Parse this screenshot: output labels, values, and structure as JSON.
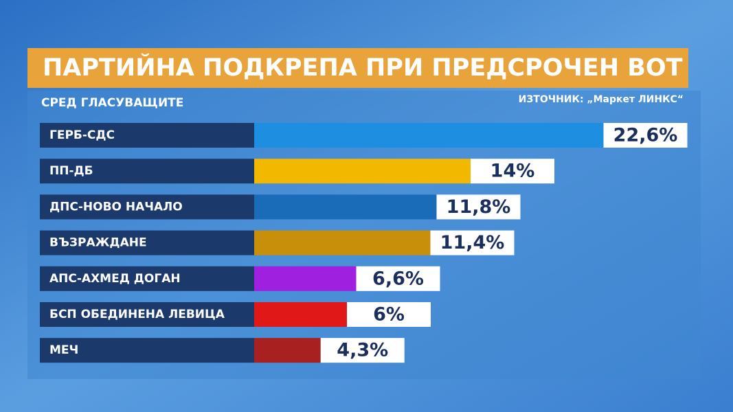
{
  "chart_data": {
    "type": "bar",
    "title": "ПАРТИЙНА ПОДКРЕПА ПРИ ПРЕДСРОЧЕН ВОТ",
    "subtitle": "СРЕД ГЛАСУВАЩИТЕ",
    "source": "ИЗТОЧНИК: „Маркет ЛИНКС“",
    "categories": [
      "ГЕРБ-СДС",
      "ПП-ДБ",
      "ДПС-НОВО НАЧАЛО",
      "ВЪЗРАЖДАНЕ",
      "АПС-АХМЕД ДОГАН",
      "БСП ОБЕДИНЕНА ЛЕВИЦА",
      "МЕЧ"
    ],
    "values": [
      22.6,
      14,
      11.8,
      11.4,
      6.6,
      6,
      4.3
    ],
    "value_labels": [
      "22,6%",
      "14%",
      "11,8%",
      "11,4%",
      "6,6%",
      "6%",
      "4,3%"
    ],
    "colors": [
      "#1e8fe0",
      "#f2b800",
      "#1a6bb8",
      "#c8900a",
      "#a020e0",
      "#e01818",
      "#a82020"
    ]
  }
}
